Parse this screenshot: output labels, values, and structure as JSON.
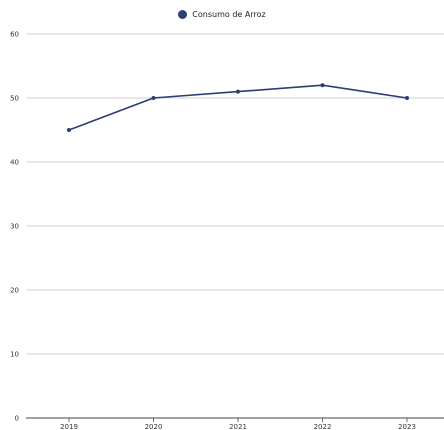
{
  "chart_data": {
    "type": "line",
    "categories": [
      "2019",
      "2020",
      "2021",
      "2022",
      "2023"
    ],
    "series": [
      {
        "name": "Consumo de Arroz",
        "values": [
          45,
          50,
          51,
          52,
          50
        ],
        "color": "#2c3e73"
      }
    ],
    "y_ticks": [
      "0",
      "10",
      "20",
      "30",
      "40",
      "50",
      "60"
    ],
    "ylim": [
      0,
      60
    ],
    "grid": true,
    "legend_position": "top-center"
  }
}
